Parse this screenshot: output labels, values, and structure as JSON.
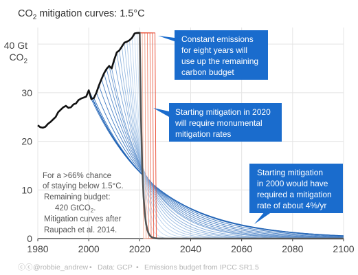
{
  "chart_data": {
    "type": "line",
    "title_main": "CO",
    "title_sub": "2",
    "title_rest": " mitigation curves: 1.5°C",
    "ylabel_top": "40 Gt",
    "ylabel_bottom_main": "CO",
    "ylabel_bottom_sub": "2",
    "xlim": [
      1980,
      2100
    ],
    "ylim": [
      0,
      42
    ],
    "xticks": [
      "1980",
      "2000",
      "2020",
      "2040",
      "2060",
      "2080",
      "2100"
    ],
    "yticks": [
      "0",
      "10",
      "20",
      "30"
    ],
    "historical": {
      "x": [
        1980,
        1981,
        1982,
        1983,
        1984,
        1985,
        1986,
        1987,
        1988,
        1989,
        1990,
        1991,
        1992,
        1993,
        1994,
        1995,
        1996,
        1997,
        1998,
        1999,
        2000,
        2001,
        2002,
        2003,
        2004,
        2005,
        2006,
        2007,
        2008,
        2009,
        2010,
        2011,
        2012,
        2013,
        2014,
        2015,
        2016,
        2017,
        2018,
        2019
      ],
      "y": [
        23.3,
        22.9,
        22.8,
        23.0,
        23.6,
        24.0,
        24.5,
        25.0,
        26.0,
        26.5,
        27.0,
        27.3,
        26.9,
        27.0,
        27.6,
        27.8,
        28.5,
        28.8,
        29.0,
        29.2,
        30.5,
        28.7,
        28.9,
        30.0,
        31.5,
        32.8,
        34.0,
        34.9,
        35.5,
        35.0,
        36.8,
        38.3,
        38.7,
        39.5,
        40.3,
        40.5,
        40.8,
        41.3,
        42.2,
        42.3
      ]
    },
    "mitigation_curves": {
      "start_years": [
        2000,
        2001,
        2002,
        2003,
        2004,
        2005,
        2006,
        2007,
        2008,
        2009,
        2010,
        2011,
        2012,
        2013,
        2014,
        2015,
        2016,
        2017,
        2018,
        2019,
        2020,
        2021,
        2022,
        2023,
        2024,
        2025,
        2026
      ],
      "highlighted_start_years": [
        2000,
        2020
      ],
      "blue_color": "#1b5fb4",
      "red_color": "#e8452c",
      "bold_color": "#555555"
    },
    "annotations": [
      {
        "lines": [
          "Constant emissions",
          "for eight years will",
          "use up the remaining",
          "carbon budget"
        ]
      },
      {
        "lines": [
          "Starting mitigation in 2020",
          "will require monumental",
          "mitigation rates"
        ]
      },
      {
        "lines": [
          "Starting mitigation",
          "in 2000 would have",
          "required a mitigation",
          "rate of about 4%/yr"
        ]
      }
    ],
    "note": {
      "lines": [
        "For a >66% chance",
        "of staying below 1.5°C.",
        "Remaining budget:",
        "420 GtCO",
        "Mitigation curves after",
        "Raupach et al. 2014."
      ],
      "budget_sub": "2",
      "budget_tail": "."
    },
    "grid": true,
    "legend": "none"
  },
  "footer": {
    "handle": "@robbie_andrew",
    "data_source": "Data: GCP",
    "budget_source": "Emissions budget from IPCC SR1.5",
    "separator": "•",
    "cc_symbol": "ⓒ"
  },
  "colors": {
    "annotation_box": "#1a6ccd",
    "axis_text": "#444444",
    "grid": "#e4e4e4",
    "footer_text": "#b5b5b5"
  }
}
